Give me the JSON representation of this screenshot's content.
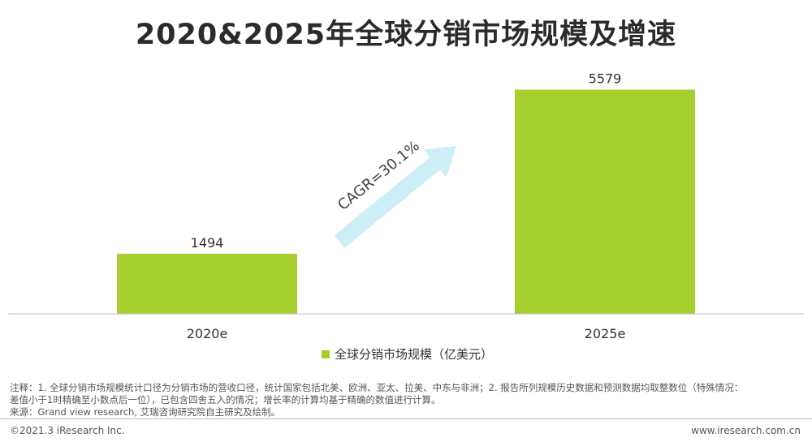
{
  "title": "2020&2025年全球分销市场规模及增速",
  "chart_data": {
    "type": "bar",
    "categories": [
      "2020e",
      "2025e"
    ],
    "series": [
      {
        "name": "全球分销市场规模（亿美元）",
        "values": [
          1494,
          5579
        ],
        "color": "#a6cf2e"
      }
    ],
    "ylim": [
      0,
      6600
    ],
    "annotation": "CAGR=30.1%",
    "legend_position": "bottom"
  },
  "notes": {
    "line1": "注释：1. 全球分销市场规模统计口径为分销市场的营收口径，统计国家包括北美、欧洲、亚太、拉美、中东与非洲；2. 报告所列规模历史数据和预测数据均取整数位（特殊情况：",
    "line2": "差值小于1时精确至小数点后一位），已包含四舍五入的情况；增长率的计算均基于精确的数值进行计算。",
    "source": "来源：Grand view research, 艾瑞咨询研究院自主研究及绘制。"
  },
  "footer": {
    "copyright": "©2021.3 iResearch Inc.",
    "url": "www.iresearch.com.cn"
  },
  "colors": {
    "bar": "#a6cf2e",
    "arrow": "#cdeef7",
    "axis": "#bfbfbf"
  }
}
